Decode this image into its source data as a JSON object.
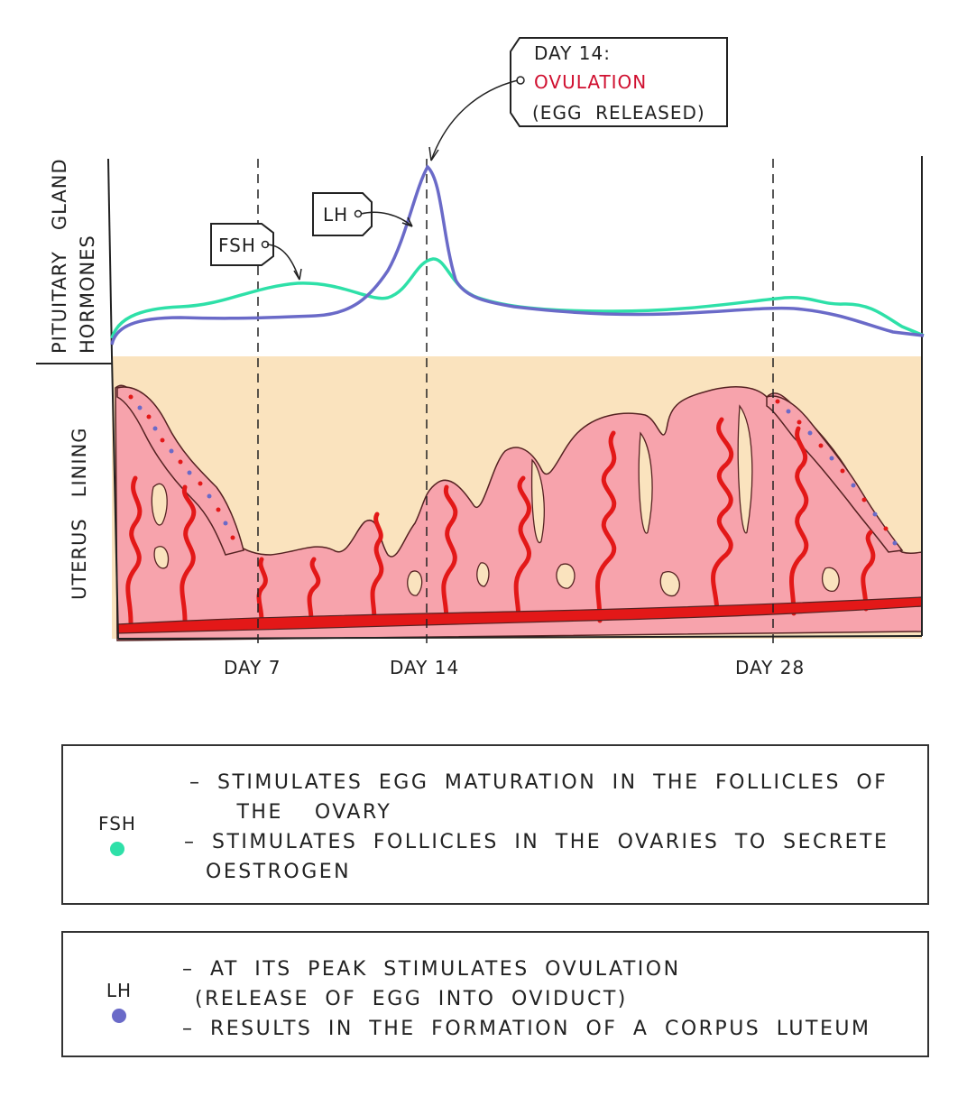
{
  "axis": {
    "upper_label_line1": "PITUITARY   GLAND",
    "upper_label_line2": "HORMONES",
    "lower_label": "UTERUS   LINING",
    "day_labels": [
      "DAY 7",
      "DAY 14",
      "DAY 28"
    ]
  },
  "callouts": {
    "ovulation_title": "DAY 14:",
    "ovulation_event": "OVULATION",
    "ovulation_note": "(EGG  RELEASED)",
    "lh_tag": "LH",
    "fsh_tag": "FSH"
  },
  "colors": {
    "fsh": "#2ee0a8",
    "lh": "#6a6ac8",
    "ovulation_text": "#d01030",
    "uterus_background": "#fae3be",
    "uterus_lining": "#f7a3ac",
    "blood_vessel": "#e31818"
  },
  "legend": [
    {
      "key": "FSH",
      "color": "#2ee0a8",
      "lines": [
        "– STIMULATES   EGG  MATURATION   IN  THE  FOLLICLES  OF",
        "   THE  OVARY",
        "– STIMULATES   FOLLICLES   IN  THE  OVARIES   TO  SECRETE",
        "OESTROGEN"
      ]
    },
    {
      "key": "LH",
      "color": "#6a6ac8",
      "lines": [
        "– AT  ITS  PEAK  STIMULATES  OVULATION",
        "(RELEASE  OF  EGG  INTO  OVIDUCT)",
        "– RESULTS  IN  THE  FORMATION  OF  A  CORPUS  LUTEUM"
      ]
    }
  ]
}
